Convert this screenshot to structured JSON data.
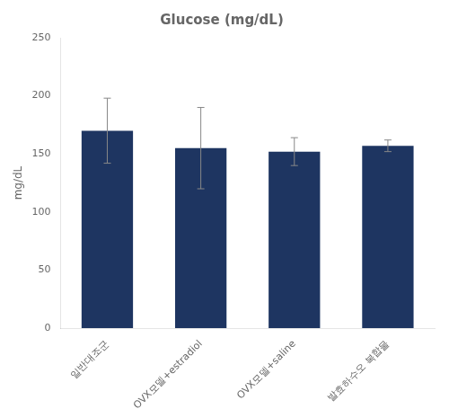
{
  "chart_data": {
    "type": "bar",
    "title": "Glucose (mg/dL)",
    "ylabel": "mg/dL",
    "categories": [
      "일반대조군",
      "OVX모델+estradiol",
      "OVX모델+saline",
      "발효하수오 복합물"
    ],
    "values": [
      170,
      155,
      152,
      157
    ],
    "errors": [
      28,
      35,
      12,
      5
    ],
    "color": "#1e3561",
    "ylim": [
      0,
      250
    ],
    "yticks": [
      0,
      50,
      100,
      150,
      200,
      250
    ],
    "grid": false
  }
}
